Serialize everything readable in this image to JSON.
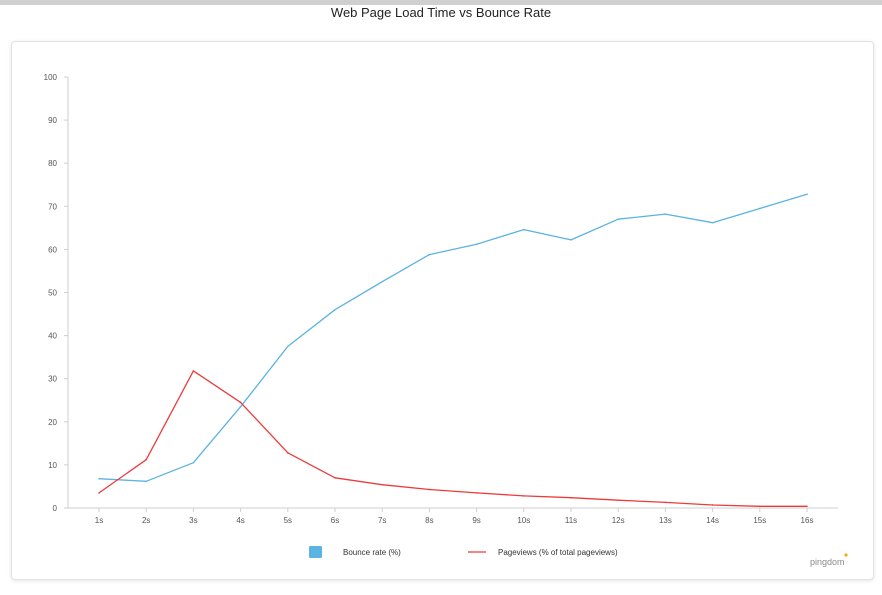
{
  "chart_data": {
    "type": "line",
    "title": "Web Page Load Time vs Bounce Rate",
    "categories": [
      "1s",
      "2s",
      "3s",
      "4s",
      "5s",
      "6s",
      "7s",
      "8s",
      "9s",
      "10s",
      "11s",
      "12s",
      "13s",
      "14s",
      "15s",
      "16s"
    ],
    "y_ticks": [
      0,
      10,
      20,
      30,
      40,
      50,
      60,
      70,
      80,
      90,
      100
    ],
    "ylim": [
      0,
      100
    ],
    "grid": false,
    "legend_position": "bottom",
    "series": [
      {
        "name": "Bounce rate  (%)",
        "color": "#5bb3e1",
        "legend_shape": "square",
        "values": [
          6.8,
          6.2,
          10.5,
          23.5,
          37.5,
          46,
          52.5,
          58.8,
          61.2,
          64.6,
          62.2,
          67,
          68.2,
          66.2,
          69.5,
          72.8
        ]
      },
      {
        "name": "Pageviews (% of total pageviews)",
        "color": "#ec3b3b",
        "legend_shape": "line",
        "values": [
          3.5,
          11.2,
          31.8,
          24.5,
          12.8,
          7,
          5.4,
          4.3,
          3.5,
          2.8,
          2.4,
          1.8,
          1.3,
          0.7,
          0.4,
          0.4
        ]
      }
    ]
  },
  "brand": {
    "logo_text": "pingdom",
    "accent_color": "#f5a623"
  }
}
